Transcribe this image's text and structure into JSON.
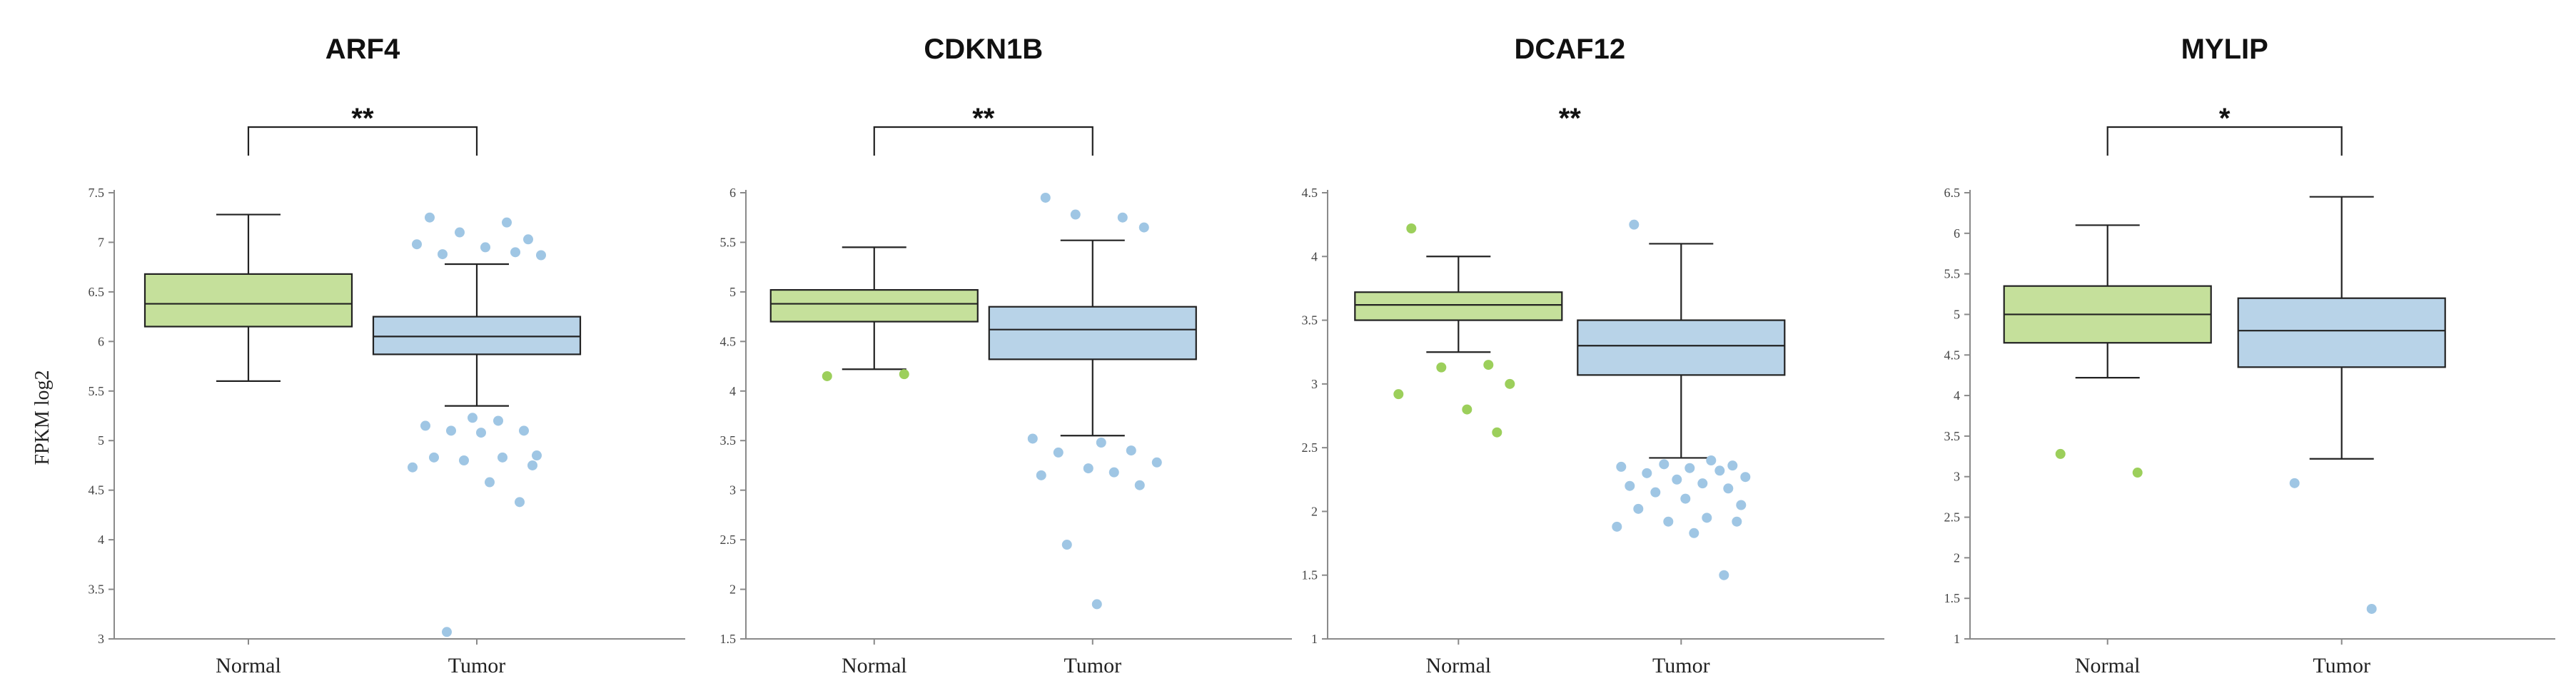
{
  "y_axis_label": "FPKM log2",
  "colors": {
    "normal": "#c5e09b",
    "tumor": "#b8d3e8",
    "normal_outlier": "#9ccf5b",
    "tumor_outlier": "#9fc6e4",
    "line": "#222222"
  },
  "chart_data": [
    {
      "type": "box",
      "title": "ARF4",
      "significance": "**",
      "bracket": true,
      "categories": [
        "Normal",
        "Tumor"
      ],
      "ylim": [
        3,
        7.5
      ],
      "yticks": [
        "3",
        "3.5",
        "4",
        "4.5",
        "5",
        "5.5",
        "6",
        "6.5",
        "7",
        "7.5"
      ],
      "ytick_values": [
        3,
        3.5,
        4,
        4.5,
        5,
        5.5,
        6,
        6.5,
        7,
        7.5
      ],
      "boxes": [
        {
          "name": "Normal",
          "min": 5.6,
          "q1": 6.15,
          "median": 6.38,
          "q3": 6.68,
          "max": 7.28,
          "outliers": []
        },
        {
          "name": "Tumor",
          "min": 5.35,
          "q1": 5.87,
          "median": 6.05,
          "q3": 6.25,
          "max": 6.78,
          "outliers": [
            7.25,
            7.2,
            7.1,
            7.03,
            6.98,
            6.95,
            6.9,
            6.88,
            6.87,
            5.23,
            5.2,
            5.15,
            5.1,
            5.1,
            5.08,
            4.85,
            4.83,
            4.83,
            4.8,
            4.75,
            4.73,
            4.58,
            4.38,
            3.07
          ]
        }
      ]
    },
    {
      "type": "box",
      "title": "CDKN1B",
      "significance": "**",
      "bracket": true,
      "categories": [
        "Normal",
        "Tumor"
      ],
      "ylim": [
        1.5,
        6
      ],
      "yticks": [
        "1.5",
        "2",
        "2.5",
        "3",
        "3.5",
        "4",
        "4.5",
        "5",
        "5.5",
        "6"
      ],
      "ytick_values": [
        1.5,
        2,
        2.5,
        3,
        3.5,
        4,
        4.5,
        5,
        5.5,
        6
      ],
      "boxes": [
        {
          "name": "Normal",
          "min": 4.22,
          "q1": 4.7,
          "median": 4.88,
          "q3": 5.02,
          "max": 5.45,
          "outliers": [
            4.15,
            4.17
          ]
        },
        {
          "name": "Tumor",
          "min": 3.55,
          "q1": 4.32,
          "median": 4.62,
          "q3": 4.85,
          "max": 5.52,
          "outliers": [
            5.95,
            5.75,
            5.78,
            5.65,
            3.52,
            3.48,
            3.4,
            3.38,
            3.28,
            3.22,
            3.18,
            3.15,
            3.05,
            2.45,
            1.85
          ]
        }
      ]
    },
    {
      "type": "box",
      "title": "DCAF12",
      "significance": "**",
      "bracket": false,
      "categories": [
        "Normal",
        "Tumor"
      ],
      "ylim": [
        1,
        4.5
      ],
      "yticks": [
        "1",
        "1.5",
        "2",
        "2.5",
        "3",
        "3.5",
        "4",
        "4.5"
      ],
      "ytick_values": [
        1,
        1.5,
        2,
        2.5,
        3,
        3.5,
        4,
        4.5
      ],
      "boxes": [
        {
          "name": "Normal",
          "min": 3.25,
          "q1": 3.5,
          "median": 3.62,
          "q3": 3.72,
          "max": 4.0,
          "outliers": [
            4.22,
            3.15,
            3.13,
            3.0,
            2.92,
            2.8,
            2.62
          ]
        },
        {
          "name": "Tumor",
          "min": 2.42,
          "q1": 3.07,
          "median": 3.3,
          "q3": 3.5,
          "max": 4.1,
          "outliers": [
            4.25,
            2.4,
            2.37,
            2.36,
            2.35,
            2.34,
            2.32,
            2.3,
            2.27,
            2.25,
            2.22,
            2.2,
            2.18,
            2.15,
            2.1,
            2.05,
            2.02,
            1.95,
            1.92,
            1.92,
            1.88,
            1.83,
            1.5
          ]
        }
      ]
    },
    {
      "type": "box",
      "title": "MYLIP",
      "significance": "*",
      "bracket": true,
      "categories": [
        "Normal",
        "Tumor"
      ],
      "ylim": [
        1,
        6.5
      ],
      "yticks": [
        "1",
        "1.5",
        "2",
        "2.5",
        "3",
        "3.5",
        "4",
        "4.5",
        "5",
        "5.5",
        "6",
        "6.5"
      ],
      "ytick_values": [
        1,
        1.5,
        2,
        2.5,
        3,
        3.5,
        4,
        4.5,
        5,
        5.5,
        6,
        6.5
      ],
      "boxes": [
        {
          "name": "Normal",
          "min": 4.22,
          "q1": 4.65,
          "median": 5.0,
          "q3": 5.35,
          "max": 6.1,
          "outliers": [
            3.28,
            3.05
          ]
        },
        {
          "name": "Tumor",
          "min": 3.22,
          "q1": 4.35,
          "median": 4.8,
          "q3": 5.2,
          "max": 6.45,
          "outliers": [
            2.92,
            1.37
          ]
        }
      ]
    }
  ]
}
